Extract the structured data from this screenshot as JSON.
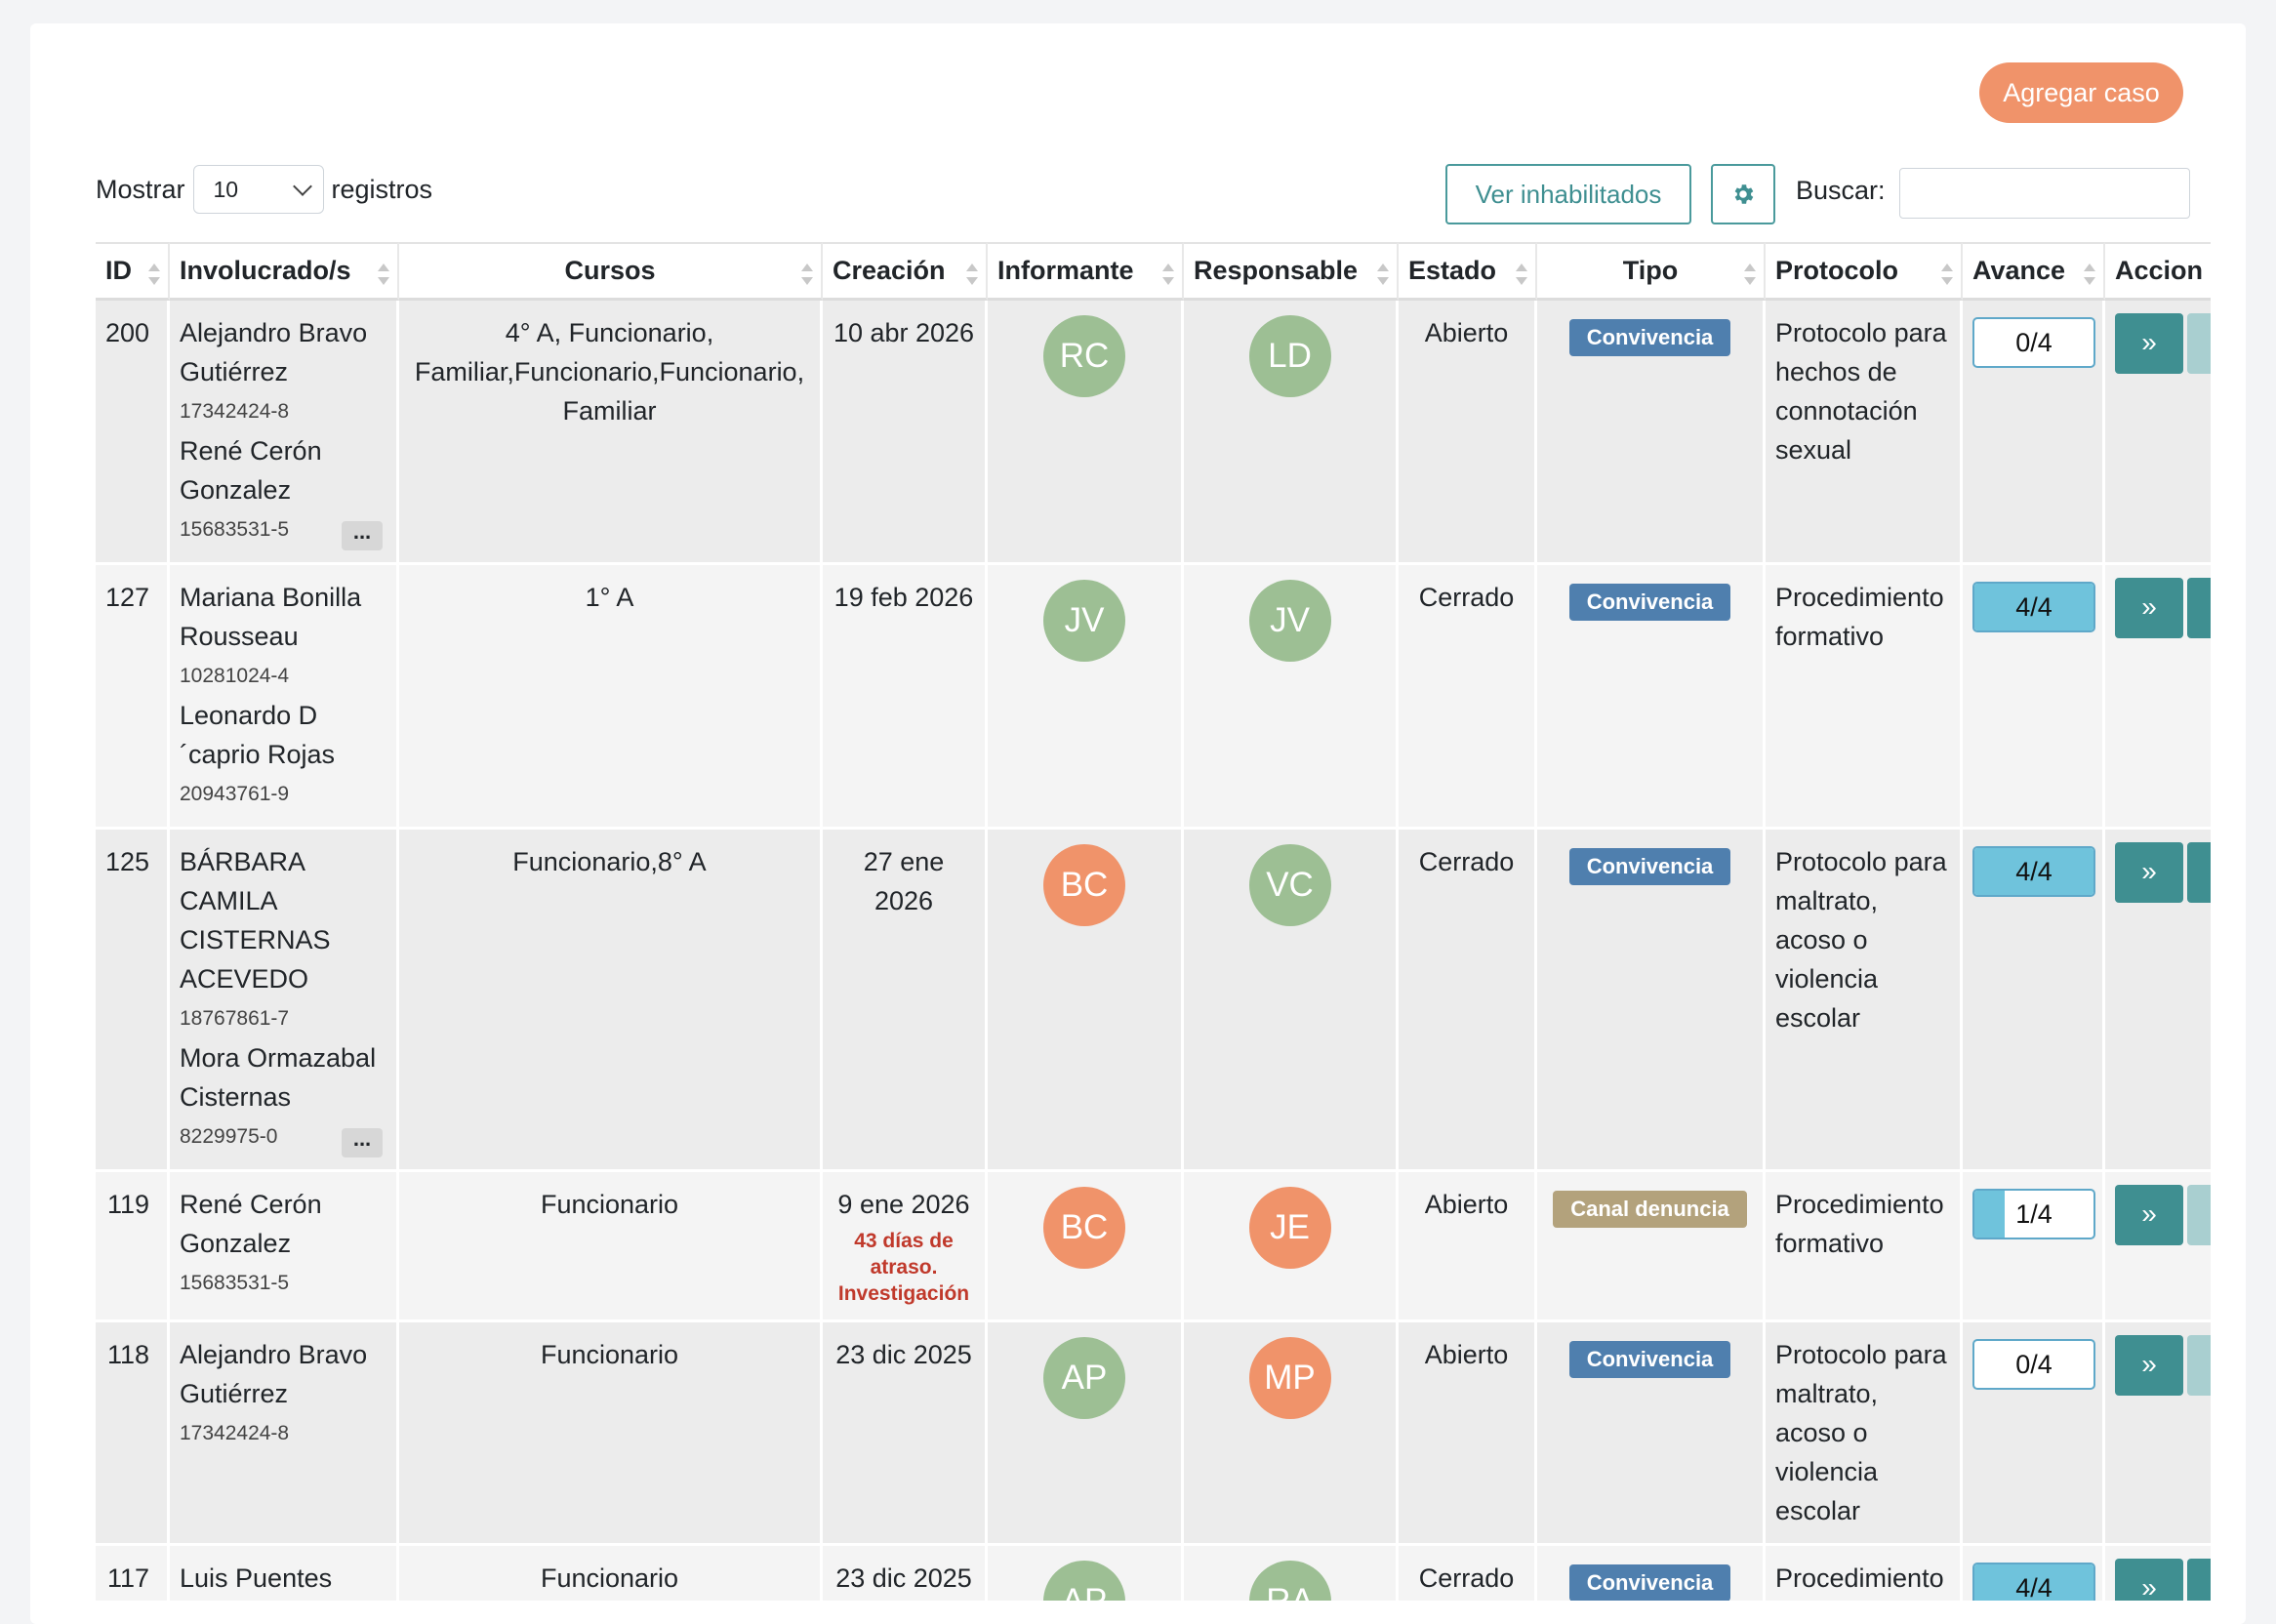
{
  "toolbar": {
    "add_case_label": "Agregar caso",
    "show_label": "Mostrar",
    "records_label": "registros",
    "page_size": "10",
    "ver_inhabilitados_label": "Ver inhabilitados",
    "search_label": "Buscar:",
    "search_value": ""
  },
  "table": {
    "headers": [
      "ID",
      "Involucrado/s",
      "Cursos",
      "Creación",
      "Informante",
      "Responsable",
      "Estado",
      "Tipo",
      "Protocolo",
      "Avance",
      "Accion"
    ],
    "rows": [
      {
        "id": "200",
        "people": [
          {
            "name": "Alejandro Bravo Gutiérrez",
            "rut": "17342424-8"
          },
          {
            "name": "René Cerón Gonzalez",
            "rut": "15683531-5"
          }
        ],
        "more": "...",
        "cursos": "4° A, Funcionario, Familiar,Funcionario,Funcionario, Familiar",
        "creacion": "10 abr 2026",
        "late": "",
        "informante": "RC",
        "informante_color": "#9dbf94",
        "responsable": "LD",
        "responsable_color": "#9dbf94",
        "estado": "Abierto",
        "tipo": "Convivencia",
        "tipo_color": "#4f7fae",
        "protocolo": "Protocolo para hechos de connotación sexual",
        "avance": "0/4",
        "avance_fraction": 0
      },
      {
        "id": "127",
        "people": [
          {
            "name": "Mariana Bonilla Rousseau",
            "rut": "10281024-4"
          },
          {
            "name": "Leonardo D ´caprio Rojas",
            "rut": "20943761-9"
          }
        ],
        "more": "",
        "cursos": "1° A",
        "creacion": "19 feb 2026",
        "late": "",
        "informante": "JV",
        "informante_color": "#9dbf94",
        "responsable": "JV",
        "responsable_color": "#9dbf94",
        "estado": "Cerrado",
        "tipo": "Convivencia",
        "tipo_color": "#4f7fae",
        "protocolo": "Procedimiento formativo",
        "avance": "4/4",
        "avance_fraction": 1
      },
      {
        "id": "125",
        "people": [
          {
            "name": "BÁRBARA CAMILA CISTERNAS ACEVEDO",
            "rut": "18767861-7"
          },
          {
            "name": "Mora Ormazabal Cisternas",
            "rut": "8229975-0"
          }
        ],
        "more": "...",
        "cursos": "Funcionario,8° A",
        "creacion": "27 ene 2026",
        "late": "",
        "informante": "BC",
        "informante_color": "#f0936a",
        "responsable": "VC",
        "responsable_color": "#9dbf94",
        "estado": "Cerrado",
        "tipo": "Convivencia",
        "tipo_color": "#4f7fae",
        "protocolo": "Protocolo para maltrato, acoso o violencia escolar",
        "avance": "4/4",
        "avance_fraction": 1
      },
      {
        "id": "119",
        "people": [
          {
            "name": "René Cerón Gonzalez",
            "rut": "15683531-5"
          }
        ],
        "more": "",
        "cursos": "Funcionario",
        "creacion": "9 ene 2026",
        "late": "43 días de atraso. Investigación",
        "informante": "BC",
        "informante_color": "#f0936a",
        "responsable": "JE",
        "responsable_color": "#f0936a",
        "estado": "Abierto",
        "tipo": "Canal denuncia",
        "tipo_color": "#b3a27c",
        "protocolo": "Procedimiento formativo",
        "avance": "1/4",
        "avance_fraction": 0.25
      },
      {
        "id": "118",
        "people": [
          {
            "name": "Alejandro Bravo Gutiérrez",
            "rut": "17342424-8"
          }
        ],
        "more": "",
        "cursos": "Funcionario",
        "creacion": "23 dic 2025",
        "late": "",
        "informante": "AP",
        "informante_color": "#9dbf94",
        "responsable": "MP",
        "responsable_color": "#f0936a",
        "estado": "Abierto",
        "tipo": "Convivencia",
        "tipo_color": "#4f7fae",
        "protocolo": "Protocolo para maltrato, acoso o violencia escolar",
        "avance": "0/4",
        "avance_fraction": 0
      },
      {
        "id": "117",
        "people": [
          {
            "name": "Luis Puentes Puentes",
            "rut": ""
          }
        ],
        "more": "",
        "cursos": "Funcionario",
        "creacion": "23 dic 2025",
        "late": "",
        "informante": "AP",
        "informante_color": "#9dbf94",
        "responsable": "RA",
        "responsable_color": "#9dbf94",
        "estado": "Cerrado",
        "tipo": "Convivencia",
        "tipo_color": "#4f7fae",
        "protocolo": "Procedimiento formativo",
        "avance": "4/4",
        "avance_fraction": 1
      }
    ],
    "action_label": "»"
  }
}
